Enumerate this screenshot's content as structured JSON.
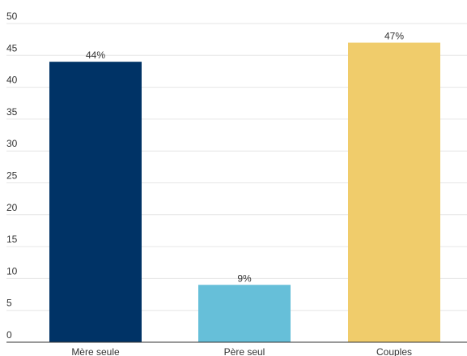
{
  "chart_data": {
    "type": "bar",
    "categories": [
      "Mère seule",
      "Père seul",
      "Couples"
    ],
    "values": [
      44,
      9,
      47
    ],
    "data_labels": [
      "44%",
      "9%",
      "47%"
    ],
    "colors": [
      "#003366",
      "#66bfd9",
      "#f0cc6b"
    ],
    "title": "",
    "xlabel": "",
    "ylabel": "",
    "ylim": [
      0,
      50
    ],
    "yticks": [
      "0",
      "5",
      "10",
      "15",
      "20",
      "25",
      "30",
      "35",
      "40",
      "45",
      "50"
    ],
    "grid": true,
    "legend": "none"
  }
}
